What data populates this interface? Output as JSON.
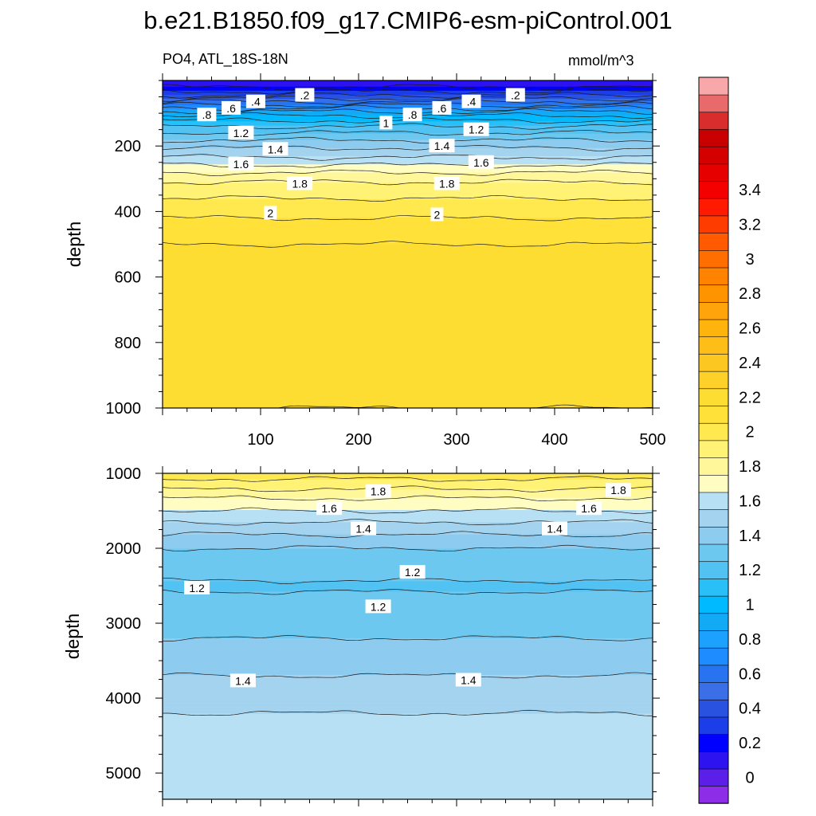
{
  "title": "b.e21.B1850.f09_g17.CMIP6-esm-piControl.001",
  "field_label": "PO4, ATL_18S-18N",
  "units": "mmol/m^3",
  "chart_data": [
    {
      "type": "heatmap",
      "panel": "upper",
      "ylabel": "depth",
      "xlabel": "",
      "xlim": [
        0,
        500
      ],
      "ylim": [
        1000,
        0
      ],
      "y_inverted": true,
      "x_ticks": [
        100,
        200,
        300,
        400,
        500
      ],
      "y_ticks": [
        200,
        400,
        600,
        800,
        1000
      ],
      "contour_interval": 0.1,
      "profile": [
        {
          "depth": 0,
          "value": 0.05
        },
        {
          "depth": 20,
          "value": 0.1
        },
        {
          "depth": 40,
          "value": 0.25
        },
        {
          "depth": 60,
          "value": 0.45
        },
        {
          "depth": 80,
          "value": 0.65
        },
        {
          "depth": 100,
          "value": 0.85
        },
        {
          "depth": 130,
          "value": 1.05
        },
        {
          "depth": 160,
          "value": 1.2
        },
        {
          "depth": 200,
          "value": 1.38
        },
        {
          "depth": 240,
          "value": 1.52
        },
        {
          "depth": 270,
          "value": 1.65
        },
        {
          "depth": 300,
          "value": 1.78
        },
        {
          "depth": 360,
          "value": 1.9
        },
        {
          "depth": 420,
          "value": 2.0
        },
        {
          "depth": 500,
          "value": 2.1
        },
        {
          "depth": 650,
          "value": 2.18
        },
        {
          "depth": 900,
          "value": 2.2
        },
        {
          "depth": 1000,
          "value": 2.1
        }
      ],
      "contour_labels": [
        {
          "text": ".2",
          "x": 145,
          "depth": 45
        },
        {
          "text": ".4",
          "x": 95,
          "depth": 65
        },
        {
          "text": ".6",
          "x": 70,
          "depth": 85
        },
        {
          "text": ".8",
          "x": 45,
          "depth": 105
        },
        {
          "text": "1.2",
          "x": 80,
          "depth": 160
        },
        {
          "text": "1.4",
          "x": 115,
          "depth": 210
        },
        {
          "text": "1.6",
          "x": 80,
          "depth": 255
        },
        {
          "text": "1.8",
          "x": 140,
          "depth": 315
        },
        {
          "text": "2",
          "x": 110,
          "depth": 405
        },
        {
          "text": ".2",
          "x": 360,
          "depth": 45
        },
        {
          "text": ".4",
          "x": 315,
          "depth": 65
        },
        {
          "text": ".6",
          "x": 285,
          "depth": 85
        },
        {
          "text": ".8",
          "x": 255,
          "depth": 105
        },
        {
          "text": "1",
          "x": 228,
          "depth": 130
        },
        {
          "text": "1.2",
          "x": 320,
          "depth": 150
        },
        {
          "text": "1.4",
          "x": 285,
          "depth": 200
        },
        {
          "text": "1.6",
          "x": 325,
          "depth": 250
        },
        {
          "text": "1.8",
          "x": 290,
          "depth": 315
        },
        {
          "text": "2",
          "x": 280,
          "depth": 410
        }
      ]
    },
    {
      "type": "heatmap",
      "panel": "lower",
      "ylabel": "depth",
      "xlabel": "",
      "xlim": [
        0,
        500
      ],
      "ylim": [
        5350,
        1000
      ],
      "y_inverted": true,
      "x_ticks": [],
      "y_ticks": [
        1000,
        2000,
        3000,
        4000,
        5000
      ],
      "contour_interval": 0.1,
      "profile": [
        {
          "depth": 1000,
          "value": 1.95
        },
        {
          "depth": 1150,
          "value": 1.85
        },
        {
          "depth": 1300,
          "value": 1.72
        },
        {
          "depth": 1500,
          "value": 1.6
        },
        {
          "depth": 1700,
          "value": 1.47
        },
        {
          "depth": 1900,
          "value": 1.35
        },
        {
          "depth": 2100,
          "value": 1.25
        },
        {
          "depth": 2500,
          "value": 1.19
        },
        {
          "depth": 2900,
          "value": 1.24
        },
        {
          "depth": 3300,
          "value": 1.32
        },
        {
          "depth": 3700,
          "value": 1.4
        },
        {
          "depth": 4200,
          "value": 1.5
        },
        {
          "depth": 5350,
          "value": 1.6
        }
      ],
      "contour_labels": [
        {
          "text": "1.8",
          "x": 220,
          "depth": 1240
        },
        {
          "text": "1.8",
          "x": 465,
          "depth": 1225
        },
        {
          "text": "1.6",
          "x": 170,
          "depth": 1470
        },
        {
          "text": "1.6",
          "x": 435,
          "depth": 1470
        },
        {
          "text": "1.4",
          "x": 205,
          "depth": 1740
        },
        {
          "text": "1.4",
          "x": 400,
          "depth": 1740
        },
        {
          "text": "1.2",
          "x": 35,
          "depth": 2530
        },
        {
          "text": "1.2",
          "x": 255,
          "depth": 2320
        },
        {
          "text": "1.2",
          "x": 220,
          "depth": 2780
        },
        {
          "text": "1.4",
          "x": 82,
          "depth": 3770
        },
        {
          "text": "1.4",
          "x": 312,
          "depth": 3760
        }
      ]
    }
  ],
  "colorbar": {
    "labels": [
      "3.4",
      "3.2",
      "3",
      "2.8",
      "2.6",
      "2.4",
      "2.2",
      "2",
      "1.8",
      "1.6",
      "1.4",
      "1.2",
      "1",
      "0.8",
      "0.6",
      "0.4",
      "0.2",
      "0"
    ],
    "colors": [
      "#8d2de8",
      "#5b1fe8",
      "#2c13f0",
      "#0000ff",
      "#1c3ee8",
      "#2a52e0",
      "#3a6fe8",
      "#2874f0",
      "#1e8cff",
      "#1da1ff",
      "#12aaf5",
      "#00baff",
      "#29c0f7",
      "#52c2f2",
      "#6dc8f0",
      "#8dcbef",
      "#a3d3ee",
      "#b8e0f4",
      "#fffdc2",
      "#fff79a",
      "#fff274",
      "#ffe94f",
      "#ffe13a",
      "#fedd32",
      "#fed12a",
      "#fcc721",
      "#ffbe17",
      "#ffb30d",
      "#ffa40a",
      "#ff9300",
      "#ff8200",
      "#ff6e00",
      "#ff5a00",
      "#ff3c00",
      "#ff1a00",
      "#f50000",
      "#e60000",
      "#d40000",
      "#c80000",
      "#d92c2c",
      "#e86a6a",
      "#f8a8a8"
    ]
  }
}
